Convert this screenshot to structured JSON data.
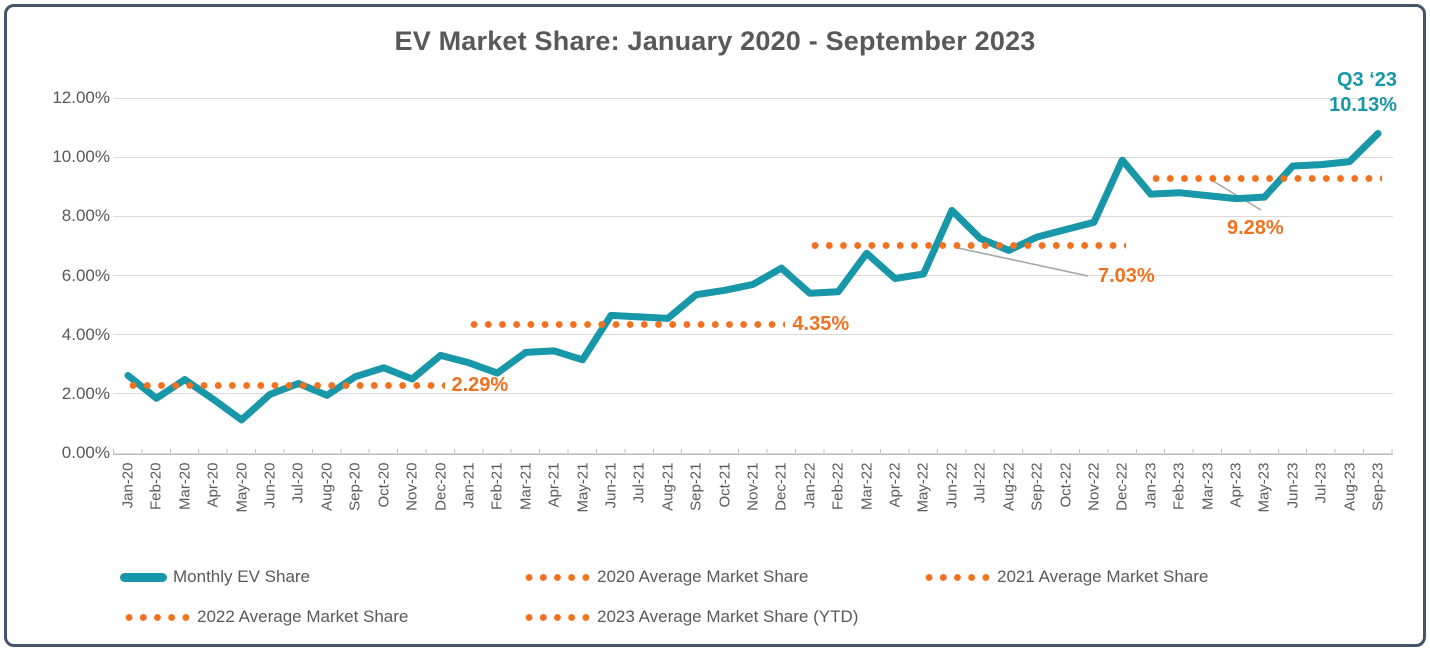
{
  "chart_data": {
    "type": "line",
    "title": "EV Market Share: January 2020 - September 2023",
    "x_labels": [
      "Jan-20",
      "Feb-20",
      "Mar-20",
      "Apr-20",
      "May-20",
      "Jun-20",
      "Jul-20",
      "Aug-20",
      "Sep-20",
      "Oct-20",
      "Nov-20",
      "Dec-20",
      "Jan-21",
      "Feb-21",
      "Mar-21",
      "Apr-21",
      "May-21",
      "Jun-21",
      "Jul-21",
      "Aug-21",
      "Sep-21",
      "Oct-21",
      "Nov-21",
      "Dec-21",
      "Jan-22",
      "Feb-22",
      "Mar-22",
      "Apr-22",
      "May-22",
      "Jun-22",
      "Jul-22",
      "Aug-22",
      "Sep-22",
      "Oct-22",
      "Nov-22",
      "Dec-22",
      "Jan-23",
      "Feb-23",
      "Mar-23",
      "Apr-23",
      "May-23",
      "Jun-23",
      "Jul-23",
      "Aug-23",
      "Sep-23"
    ],
    "y_ticks": [
      "12.00%",
      "10.00%",
      "8.00%",
      "6.00%",
      "4.00%",
      "2.00%",
      "0.00%"
    ],
    "ylim": [
      0,
      12
    ],
    "grid": true,
    "legend_position": "bottom",
    "series": [
      {
        "name": "Monthly EV Share",
        "type": "line",
        "color": "#1897A8",
        "values": [
          2.62,
          1.85,
          2.48,
          1.82,
          1.12,
          1.98,
          2.35,
          1.95,
          2.58,
          2.88,
          2.5,
          3.3,
          3.05,
          2.7,
          3.4,
          3.45,
          3.15,
          4.65,
          4.6,
          4.55,
          5.35,
          5.5,
          5.7,
          6.25,
          5.4,
          5.45,
          6.75,
          5.9,
          6.05,
          8.2,
          7.25,
          6.85,
          7.3,
          7.55,
          7.8,
          9.9,
          8.75,
          8.8,
          8.7,
          8.6,
          8.65,
          9.7,
          9.75,
          9.85,
          10.8
        ]
      },
      {
        "name": "2020 Average Market Share",
        "type": "average-line",
        "color": "#F0711F",
        "value": 2.29,
        "label": "2.29%",
        "span_month_indices": [
          0,
          11
        ]
      },
      {
        "name": "2021 Average Market Share",
        "type": "average-line",
        "color": "#F0711F",
        "value": 4.35,
        "label": "4.35%",
        "span_month_indices": [
          12,
          23
        ]
      },
      {
        "name": "2022 Average Market Share",
        "type": "average-line",
        "color": "#F0711F",
        "value": 7.03,
        "label": "7.03%",
        "span_month_indices": [
          24,
          35
        ]
      },
      {
        "name": "2023 Average Market Share (YTD)",
        "type": "average-line",
        "color": "#F0711F",
        "value": 9.28,
        "label": "9.28%",
        "span_month_indices": [
          36,
          44
        ]
      }
    ],
    "annotations": {
      "avg_2020": "2.29%",
      "avg_2021": "4.35%",
      "avg_2022": "7.03%",
      "avg_2023": "9.28%",
      "q3_line1": "Q3 ‘23",
      "q3_line2": "10.13%"
    }
  },
  "legend": {
    "items": [
      {
        "label": "Monthly EV Share",
        "marker": "teal-line"
      },
      {
        "label": "2020 Average Market Share",
        "marker": "orange-dots"
      },
      {
        "label": "2021 Average Market Share",
        "marker": "orange-dots"
      },
      {
        "label": "2022 Average Market Share",
        "marker": "orange-dots"
      },
      {
        "label": "2023 Average Market Share (YTD)",
        "marker": "orange-dots"
      }
    ]
  },
  "colors": {
    "line_teal": "#1897A8",
    "dot_orange": "#F0711F",
    "text_gray": "#595959",
    "gridline": "#D9D9D9",
    "axis": "#BFBFBF",
    "leader_gray": "#A6A6A6",
    "frame_border": "#44546A"
  }
}
